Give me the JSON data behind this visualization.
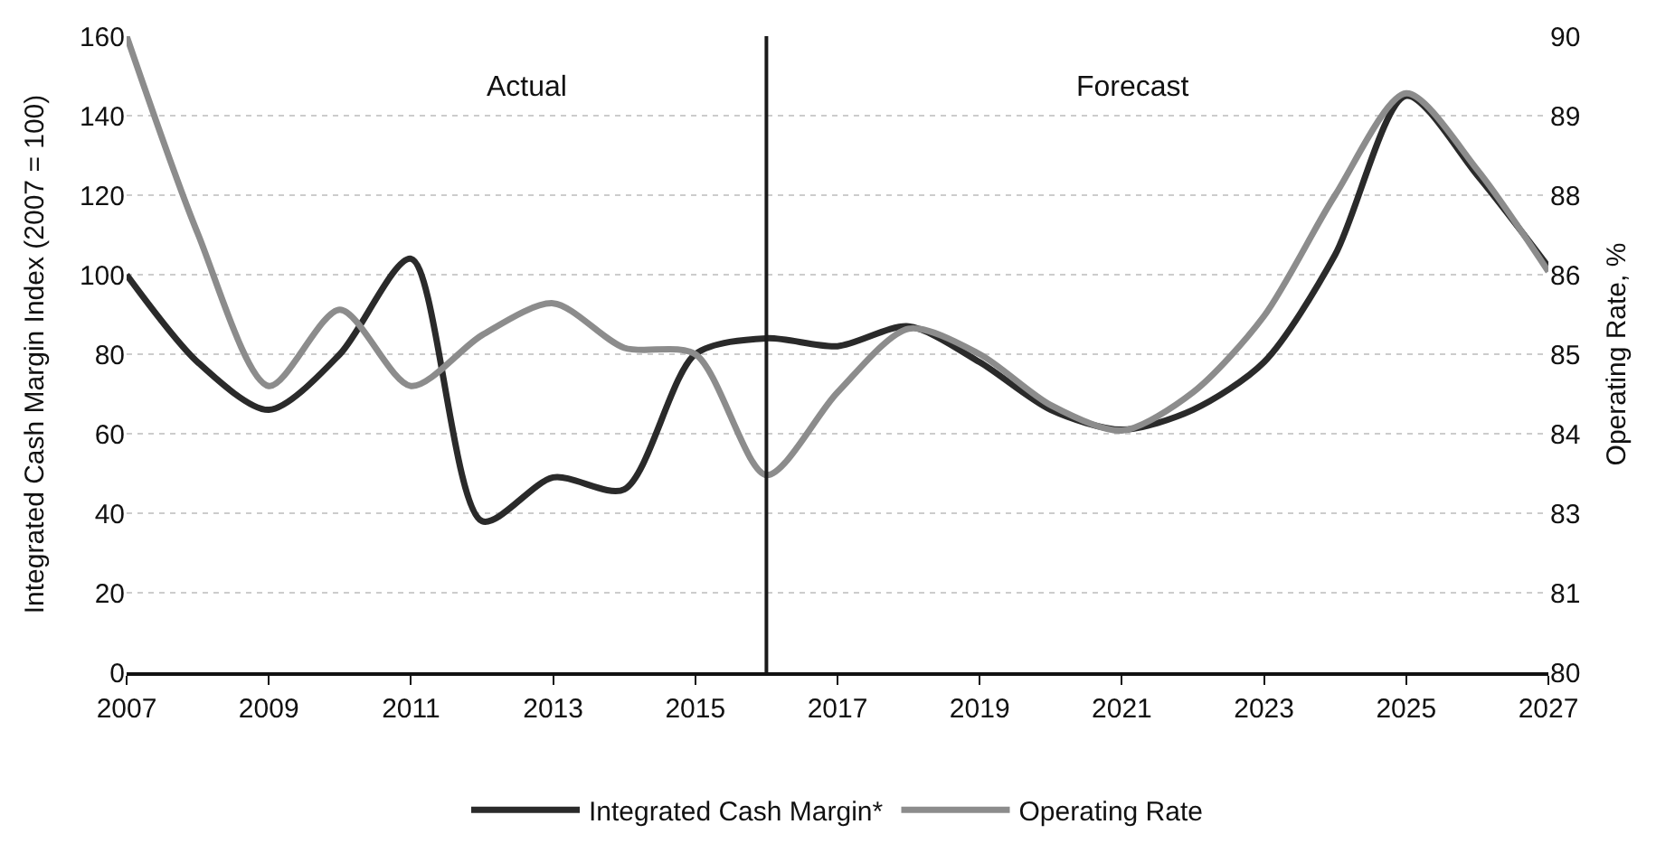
{
  "chart_data": {
    "type": "line",
    "ylabel": "Integrated Cash Margin Index (2007 = 100)",
    "y2label": "Operating Rate, %",
    "x": [
      2007,
      2008,
      2009,
      2010,
      2011,
      2012,
      2013,
      2014,
      2015,
      2016,
      2017,
      2018,
      2019,
      2020,
      2021,
      2022,
      2023,
      2024,
      2025,
      2026,
      2027
    ],
    "series": [
      {
        "name": "Integrated Cash Margin*",
        "color": "#2a2a2a",
        "values": [
          100,
          78,
          66,
          80,
          104,
          38,
          49,
          46,
          80,
          84,
          82,
          87,
          78,
          66,
          61,
          66,
          78,
          105,
          145,
          125,
          102
        ]
      },
      {
        "name": "Operating Rate",
        "color": "#8c8c8c",
        "axis": "y2",
        "values": [
          90,
          86.9,
          84.5,
          85.7,
          84.5,
          85.3,
          85.8,
          85.1,
          85.0,
          83.1,
          84.4,
          85.4,
          85.0,
          84.2,
          83.8,
          84.4,
          85.6,
          87.5,
          89.1,
          87.9,
          86.3
        ]
      }
    ],
    "xlim": [
      2007,
      2027
    ],
    "xticks": [
      2007,
      2009,
      2011,
      2013,
      2015,
      2017,
      2019,
      2021,
      2023,
      2025,
      2027
    ],
    "ylim": [
      0,
      160
    ],
    "yticks": [
      0,
      20,
      40,
      60,
      80,
      100,
      120,
      140,
      160
    ],
    "y2lim": [
      80,
      90
    ],
    "y2ticks": [
      80,
      {
        "value": 81.25,
        "label": "81"
      },
      {
        "value": 82.5,
        "label": "83"
      },
      {
        "value": 83.75,
        "label": "84"
      },
      85,
      {
        "value": 86.25,
        "label": "86"
      },
      {
        "value": 87.5,
        "label": "88"
      },
      {
        "value": 88.75,
        "label": "89"
      },
      90
    ],
    "ref_lines": [
      {
        "axis": "x",
        "value": 2016,
        "label": null,
        "color": "#1a1a1a"
      }
    ],
    "annotations": [
      "Actual",
      "Forecast"
    ],
    "grid": "y",
    "legend": "bottom",
    "marker": "none",
    "line_style": "solid"
  }
}
